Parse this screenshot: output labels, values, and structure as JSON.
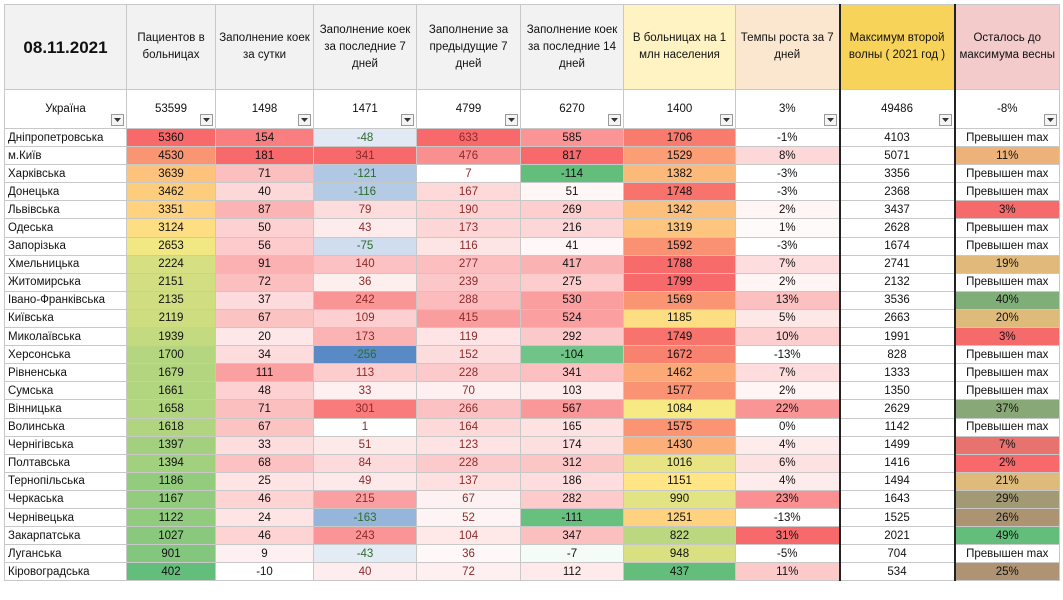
{
  "title_date": "08.11.2021",
  "headers": [
    "Пациентов в больницах",
    "Заполнение коек за сутки",
    "Заполнение коек за последние 7 дней",
    "Заполнение за предыдущие 7 дней",
    "Заполнение коек за последние 14 дней",
    "В больницах на 1 млн населения",
    "Темпы роста за 7 дней",
    "Максимум второй волны ( 2021 год )",
    "Осталось до максимума весны"
  ],
  "total": {
    "name": "Україна",
    "values": [
      "53599",
      "1498",
      "1471",
      "4799",
      "6270",
      "1400",
      "3%",
      "49486",
      "-8%"
    ]
  },
  "rows": [
    {
      "name": "Дніпропетровська",
      "v": [
        "5360",
        "154",
        "-48",
        "633",
        "585",
        "1706",
        "-1%",
        "4103",
        "Превышен max"
      ]
    },
    {
      "name": "м.Київ",
      "v": [
        "4530",
        "181",
        "341",
        "476",
        "817",
        "1529",
        "8%",
        "5071",
        "11%"
      ]
    },
    {
      "name": "Харківська",
      "v": [
        "3639",
        "71",
        "-121",
        "7",
        "-114",
        "1382",
        "-3%",
        "3356",
        "Превышен max"
      ]
    },
    {
      "name": "Донецька",
      "v": [
        "3462",
        "40",
        "-116",
        "167",
        "51",
        "1748",
        "-3%",
        "2368",
        "Превышен max"
      ]
    },
    {
      "name": "Львівська",
      "v": [
        "3351",
        "87",
        "79",
        "190",
        "269",
        "1342",
        "2%",
        "3437",
        "3%"
      ]
    },
    {
      "name": "Одеська",
      "v": [
        "3124",
        "50",
        "43",
        "173",
        "216",
        "1319",
        "1%",
        "2628",
        "Превышен max"
      ]
    },
    {
      "name": "Запорізька",
      "v": [
        "2653",
        "56",
        "-75",
        "116",
        "41",
        "1592",
        "-3%",
        "1674",
        "Превышен max"
      ]
    },
    {
      "name": "Хмельницька",
      "v": [
        "2224",
        "91",
        "140",
        "277",
        "417",
        "1788",
        "7%",
        "2741",
        "19%"
      ]
    },
    {
      "name": "Житомирська",
      "v": [
        "2151",
        "72",
        "36",
        "239",
        "275",
        "1799",
        "2%",
        "2132",
        "Превышен max"
      ]
    },
    {
      "name": "Івано-Франківська",
      "v": [
        "2135",
        "37",
        "242",
        "288",
        "530",
        "1569",
        "13%",
        "3536",
        "40%"
      ]
    },
    {
      "name": "Київська",
      "v": [
        "2119",
        "67",
        "109",
        "415",
        "524",
        "1185",
        "5%",
        "2663",
        "20%"
      ]
    },
    {
      "name": "Миколаївська",
      "v": [
        "1939",
        "20",
        "173",
        "119",
        "292",
        "1749",
        "10%",
        "1991",
        "3%"
      ]
    },
    {
      "name": "Херсонська",
      "v": [
        "1700",
        "34",
        "-256",
        "152",
        "-104",
        "1672",
        "-13%",
        "828",
        "Превышен max"
      ]
    },
    {
      "name": "Рівненська",
      "v": [
        "1679",
        "111",
        "113",
        "228",
        "341",
        "1462",
        "7%",
        "1333",
        "Превышен max"
      ]
    },
    {
      "name": "Сумська",
      "v": [
        "1661",
        "48",
        "33",
        "70",
        "103",
        "1577",
        "2%",
        "1350",
        "Превышен max"
      ]
    },
    {
      "name": "Вінницька",
      "v": [
        "1658",
        "71",
        "301",
        "266",
        "567",
        "1084",
        "22%",
        "2629",
        "37%"
      ]
    },
    {
      "name": "Волинська",
      "v": [
        "1618",
        "67",
        "1",
        "164",
        "165",
        "1575",
        "0%",
        "1142",
        "Превышен max"
      ]
    },
    {
      "name": "Чернігівська",
      "v": [
        "1397",
        "33",
        "51",
        "123",
        "174",
        "1430",
        "4%",
        "1499",
        "7%"
      ]
    },
    {
      "name": "Полтавська",
      "v": [
        "1394",
        "68",
        "84",
        "228",
        "312",
        "1016",
        "6%",
        "1416",
        "2%"
      ]
    },
    {
      "name": "Тернопільська",
      "v": [
        "1186",
        "25",
        "49",
        "137",
        "186",
        "1151",
        "4%",
        "1494",
        "21%"
      ]
    },
    {
      "name": "Черкаська",
      "v": [
        "1167",
        "46",
        "215",
        "67",
        "282",
        "990",
        "23%",
        "1643",
        "29%"
      ]
    },
    {
      "name": "Чернівецька",
      "v": [
        "1122",
        "24",
        "-163",
        "52",
        "-111",
        "1251",
        "-13%",
        "1525",
        "26%"
      ]
    },
    {
      "name": "Закарпатська",
      "v": [
        "1027",
        "46",
        "243",
        "104",
        "347",
        "822",
        "31%",
        "2021",
        "49%"
      ]
    },
    {
      "name": "Луганська",
      "v": [
        "901",
        "9",
        "-43",
        "36",
        "-7",
        "948",
        "-5%",
        "704",
        "Превышен max"
      ]
    },
    {
      "name": "Кіровоградська",
      "v": [
        "402",
        "-10",
        "40",
        "72",
        "112",
        "437",
        "11%",
        "534",
        "25%"
      ]
    }
  ],
  "colors": {
    "header_bg": "#f2f2f2",
    "max_header_bg": "#f8d35a",
    "remaining_header_bg": "#f4cbcb",
    "growth_header_bg": "#fbe7cf",
    "per_million_header_bg": "#fff3c4"
  },
  "icons": {
    "filter": "filter-dropdown-icon",
    "sort": "sort-filter-icon"
  }
}
